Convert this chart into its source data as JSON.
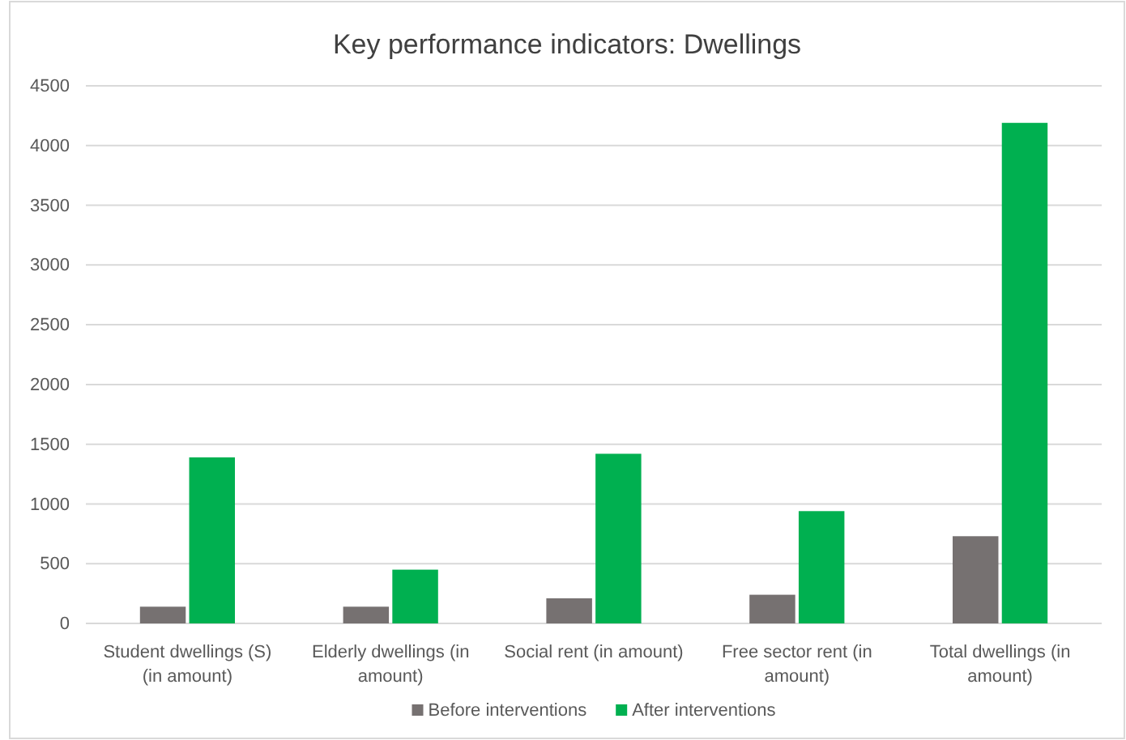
{
  "chart_data": {
    "type": "bar",
    "title": "Key performance indicators: Dwellings",
    "categories": [
      "Student dwellings (S) (in amount)",
      "Elderly dwellings (in amount)",
      "Social rent (in amount)",
      "Free sector rent (in amount)",
      "Total dwellings (in amount)"
    ],
    "series": [
      {
        "name": "Before interventions",
        "color": "#767171",
        "values": [
          140,
          140,
          210,
          240,
          730
        ]
      },
      {
        "name": "After interventions",
        "color": "#00b050",
        "values": [
          1390,
          450,
          1420,
          940,
          4190
        ]
      }
    ],
    "ylim": [
      0,
      4500
    ],
    "yticks": [
      0,
      500,
      1000,
      1500,
      2000,
      2500,
      3000,
      3500,
      4000,
      4500
    ],
    "grid": "y",
    "legend": "bottom"
  }
}
